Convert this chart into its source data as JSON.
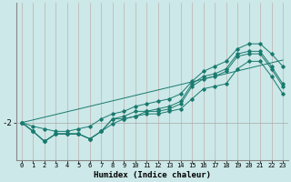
{
  "xlabel": "Humidex (Indice chaleur)",
  "bg_color": "#cce8e8",
  "line_color": "#1a7a6e",
  "xlim": [
    -0.5,
    23.5
  ],
  "ylim": [
    -3.5,
    2.8
  ],
  "ytick_val": -2.0,
  "ytick_label": "-2",
  "x": [
    0,
    1,
    2,
    3,
    4,
    5,
    6,
    7,
    8,
    9,
    10,
    11,
    12,
    13,
    14,
    15,
    16,
    17,
    18,
    19,
    20,
    21,
    22,
    23
  ],
  "series": [
    [
      -2.0,
      -2.35,
      -2.75,
      -2.45,
      -2.45,
      -2.45,
      -2.65,
      -2.35,
      -1.85,
      -1.85,
      -1.75,
      -1.65,
      -1.65,
      -1.55,
      -1.45,
      -1.05,
      -0.65,
      -0.55,
      -0.45,
      0.15,
      0.45,
      0.45,
      -0.15,
      -0.85
    ],
    [
      -2.0,
      -2.35,
      -2.75,
      -2.45,
      -2.45,
      -2.45,
      -2.65,
      -2.35,
      -2.05,
      -1.85,
      -1.75,
      -1.55,
      -1.55,
      -1.45,
      -1.25,
      -0.55,
      -0.25,
      -0.15,
      0.05,
      0.65,
      0.75,
      0.75,
      0.15,
      -0.55
    ],
    [
      -2.0,
      -2.35,
      -2.75,
      -2.45,
      -2.45,
      -2.45,
      -2.65,
      -2.35,
      -1.85,
      -1.75,
      -1.55,
      -1.55,
      -1.45,
      -1.35,
      -1.15,
      -0.45,
      -0.15,
      -0.05,
      0.15,
      0.75,
      0.85,
      0.85,
      0.25,
      -0.45
    ],
    [
      -2.0,
      -2.15,
      -2.25,
      -2.35,
      -2.35,
      -2.25,
      -2.15,
      -1.85,
      -1.65,
      -1.55,
      -1.35,
      -1.25,
      -1.15,
      -1.05,
      -0.85,
      -0.35,
      0.05,
      0.25,
      0.45,
      0.95,
      1.15,
      1.15,
      0.75,
      0.25
    ]
  ],
  "trend_x": [
    0,
    23
  ],
  "trend_y": [
    -2.0,
    0.5
  ]
}
